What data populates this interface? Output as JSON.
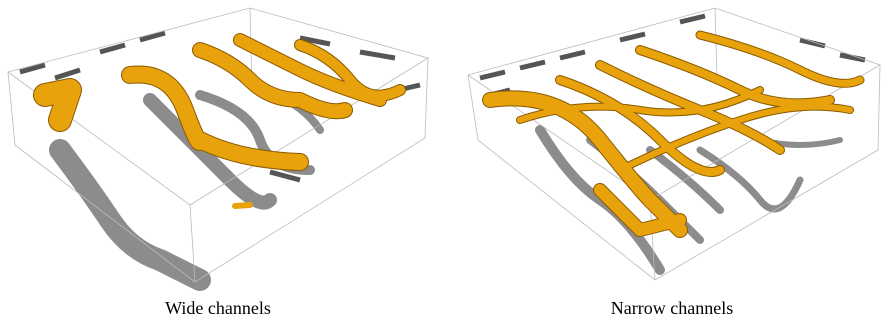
{
  "panels": [
    {
      "caption": "Wide channels"
    },
    {
      "caption": "Narrow channels"
    }
  ]
}
